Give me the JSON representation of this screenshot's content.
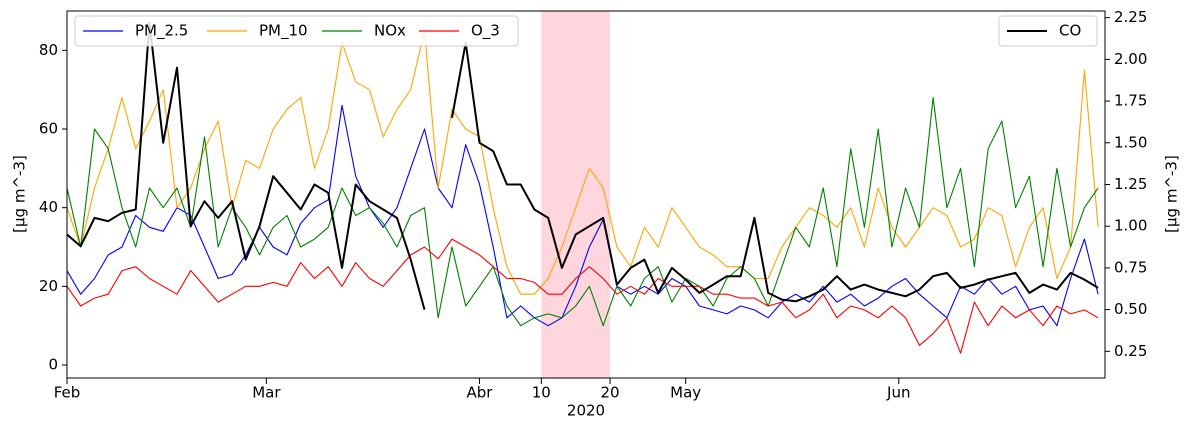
{
  "chart_data": {
    "type": "line",
    "ylabel": "[µg m^-3]",
    "y2label": "[µg m^-3]",
    "x_offset_label": "2020",
    "x": [
      "2020-02-01",
      "2020-02-03",
      "2020-02-05",
      "2020-02-07",
      "2020-02-09",
      "2020-02-11",
      "2020-02-13",
      "2020-02-15",
      "2020-02-17",
      "2020-02-19",
      "2020-02-21",
      "2020-02-23",
      "2020-02-25",
      "2020-02-27",
      "2020-02-29",
      "2020-03-02",
      "2020-03-04",
      "2020-03-06",
      "2020-03-08",
      "2020-03-10",
      "2020-03-12",
      "2020-03-14",
      "2020-03-16",
      "2020-03-18",
      "2020-03-20",
      "2020-03-22",
      "2020-03-24",
      "2020-03-26",
      "2020-03-28",
      "2020-03-30",
      "2020-04-01",
      "2020-04-03",
      "2020-04-05",
      "2020-04-07",
      "2020-04-09",
      "2020-04-11",
      "2020-04-13",
      "2020-04-15",
      "2020-04-17",
      "2020-04-19",
      "2020-04-21",
      "2020-04-23",
      "2020-04-25",
      "2020-04-27",
      "2020-04-29",
      "2020-05-01",
      "2020-05-03",
      "2020-05-05",
      "2020-05-07",
      "2020-05-09",
      "2020-05-11",
      "2020-05-13",
      "2020-05-15",
      "2020-05-17",
      "2020-05-19",
      "2020-05-21",
      "2020-05-23",
      "2020-05-25",
      "2020-05-27",
      "2020-05-29",
      "2020-05-31",
      "2020-06-02",
      "2020-06-04",
      "2020-06-06",
      "2020-06-08",
      "2020-06-10",
      "2020-06-12",
      "2020-06-14",
      "2020-06-16",
      "2020-06-18",
      "2020-06-20",
      "2020-06-22",
      "2020-06-24",
      "2020-06-26",
      "2020-06-28",
      "2020-06-30"
    ],
    "xlim": [
      "2020-02-01",
      "2020-07-01"
    ],
    "xticks": [
      {
        "value": "2020-02-01",
        "label": "Feb"
      },
      {
        "value": "2020-03-01",
        "label": "Mar"
      },
      {
        "value": "2020-04-01",
        "label": "Abr"
      },
      {
        "value": "2020-04-10",
        "label": "10"
      },
      {
        "value": "2020-04-20",
        "label": "20"
      },
      {
        "value": "2020-05-01",
        "label": "May"
      },
      {
        "value": "2020-06-01",
        "label": "Jun"
      }
    ],
    "ylim": [
      -3.3,
      90
    ],
    "yticks": [
      0,
      20,
      40,
      60,
      80
    ],
    "y2lim": [
      0.09,
      2.29
    ],
    "y2ticks": [
      {
        "value": 0.25,
        "label": "0.25"
      },
      {
        "value": 0.5,
        "label": "0.50"
      },
      {
        "value": 0.75,
        "label": "0.75"
      },
      {
        "value": 1.0,
        "label": "1.00"
      },
      {
        "value": 1.25,
        "label": "1.25"
      },
      {
        "value": 1.5,
        "label": "1.50"
      },
      {
        "value": 1.75,
        "label": "1.75"
      },
      {
        "value": 2.0,
        "label": "2.00"
      },
      {
        "value": 2.25,
        "label": "2.25"
      }
    ],
    "highlight": {
      "range": [
        "2020-04-10",
        "2020-04-20"
      ],
      "color": "#ffd6de"
    },
    "legend_loc": "upper left",
    "legend2_loc": "upper right",
    "series": [
      {
        "name": "PM_2.5",
        "color": "#0000ff",
        "values": [
          24,
          18,
          22,
          28,
          30,
          38,
          35,
          34,
          40,
          38,
          30,
          22,
          23,
          28,
          35,
          30,
          28,
          36,
          40,
          42,
          66,
          48,
          40,
          35,
          40,
          50,
          60,
          45,
          40,
          56,
          46,
          30,
          12,
          15,
          12,
          10,
          12,
          20,
          30,
          37,
          20,
          18,
          20,
          18,
          22,
          20,
          15,
          14,
          13,
          15,
          14,
          12,
          16,
          18,
          16,
          20,
          16,
          18,
          15,
          17,
          20,
          22,
          18,
          15,
          12,
          20,
          18,
          22,
          18,
          20,
          14,
          15,
          10,
          22,
          32,
          18
        ]
      },
      {
        "name": "PM_10",
        "color": "#ffa500",
        "values": [
          40,
          30,
          45,
          55,
          68,
          55,
          62,
          70,
          40,
          45,
          55,
          62,
          40,
          52,
          50,
          60,
          65,
          68,
          50,
          60,
          82,
          72,
          70,
          58,
          65,
          70,
          85,
          45,
          65,
          60,
          58,
          40,
          25,
          18,
          18,
          22,
          30,
          40,
          50,
          45,
          30,
          25,
          35,
          30,
          40,
          35,
          30,
          28,
          25,
          25,
          22,
          22,
          30,
          35,
          40,
          38,
          35,
          40,
          30,
          45,
          35,
          30,
          35,
          40,
          38,
          30,
          32,
          40,
          38,
          25,
          35,
          40,
          22,
          30,
          75,
          35
        ]
      },
      {
        "name": "NOx",
        "color": "#008000",
        "values": [
          45,
          30,
          60,
          55,
          40,
          30,
          45,
          40,
          45,
          35,
          58,
          30,
          40,
          35,
          28,
          35,
          38,
          30,
          32,
          35,
          45,
          38,
          40,
          36,
          30,
          38,
          40,
          12,
          30,
          15,
          20,
          25,
          15,
          10,
          12,
          13,
          12,
          15,
          20,
          10,
          20,
          15,
          22,
          25,
          16,
          22,
          20,
          15,
          22,
          25,
          22,
          15,
          25,
          35,
          30,
          45,
          25,
          55,
          35,
          60,
          30,
          45,
          35,
          68,
          40,
          50,
          25,
          55,
          62,
          40,
          48,
          25,
          50,
          30,
          40,
          45
        ]
      },
      {
        "name": "O_3",
        "color": "#ff0000",
        "values": [
          20,
          15,
          17,
          18,
          24,
          25,
          22,
          20,
          18,
          24,
          20,
          16,
          18,
          20,
          20,
          21,
          20,
          26,
          22,
          25,
          20,
          26,
          22,
          20,
          24,
          28,
          30,
          27,
          32,
          30,
          28,
          25,
          22,
          22,
          21,
          18,
          18,
          22,
          25,
          22,
          18,
          20,
          18,
          22,
          20,
          20,
          20,
          18,
          18,
          17,
          17,
          15,
          16,
          12,
          14,
          18,
          12,
          15,
          14,
          12,
          15,
          12,
          5,
          8,
          12,
          3,
          16,
          10,
          15,
          12,
          14,
          10,
          15,
          13,
          14,
          12
        ]
      },
      {
        "name": "CO",
        "color": "#000000",
        "axis": "y2",
        "values": [
          0.95,
          0.88,
          1.05,
          1.03,
          1.08,
          1.1,
          2.22,
          1.5,
          1.95,
          1.0,
          1.15,
          1.05,
          1.15,
          0.8,
          1.0,
          1.3,
          1.2,
          1.1,
          1.25,
          1.2,
          0.75,
          1.25,
          1.15,
          1.1,
          1.05,
          0.8,
          0.5,
          null,
          1.65,
          2.1,
          1.5,
          1.45,
          1.25,
          1.25,
          1.1,
          1.05,
          0.75,
          0.95,
          1.0,
          1.05,
          0.65,
          0.75,
          0.8,
          0.6,
          0.75,
          0.68,
          0.6,
          0.65,
          0.7,
          0.7,
          1.05,
          0.6,
          0.56,
          0.55,
          0.58,
          0.62,
          0.7,
          0.62,
          0.65,
          0.62,
          0.6,
          0.58,
          0.62,
          0.7,
          0.72,
          0.63,
          0.65,
          0.68,
          0.7,
          0.72,
          0.6,
          0.65,
          0.62,
          0.72,
          0.68,
          0.63
        ]
      }
    ]
  }
}
